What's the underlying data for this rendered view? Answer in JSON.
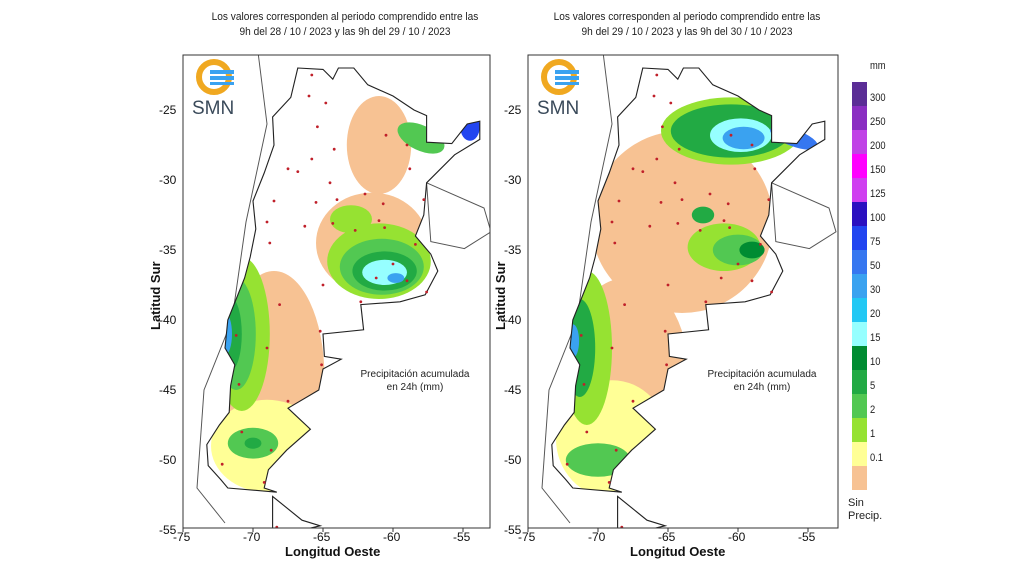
{
  "maps": [
    {
      "header_line1": "Los valores corresponden al periodo comprendido entre las",
      "header_line2": "9h del 28 / 10 / 2023  y las 9h del 29 / 10 / 2023",
      "annotation_line1": "Precipitación acumulada",
      "annotation_line2": "en 24h (mm)"
    },
    {
      "header_line1": "Los valores corresponden al periodo comprendido entre las",
      "header_line2": "9h del 29 / 10 / 2023  y las 9h del 30 / 10 / 2023",
      "annotation_line1": "Precipitación acumulada",
      "annotation_line2": "en 24h (mm)"
    }
  ],
  "logo_text": "SMN",
  "axes": {
    "xlabel": "Longitud Oeste",
    "ylabel": "Latitud Sur",
    "xticks": [
      "-75",
      "-70",
      "-65",
      "-60",
      "-55"
    ],
    "yticks": [
      "-25",
      "-30",
      "-35",
      "-40",
      "-45",
      "-50",
      "-55"
    ]
  },
  "legend": {
    "unit": "mm",
    "labels": [
      "300",
      "250",
      "200",
      "150",
      "125",
      "100",
      "75",
      "50",
      "30",
      "20",
      "15",
      "10",
      "5",
      "2",
      "1",
      "0.1"
    ],
    "colors": [
      "#5b2d96",
      "#8a2ec2",
      "#c043e6",
      "#ff00ff",
      "#cf3ff0",
      "#2b10c0",
      "#2245f0",
      "#3677f0",
      "#3aa2f0",
      "#22c8f4",
      "#96ffff",
      "#008c32",
      "#22aa44",
      "#52c852",
      "#96e232",
      "#ffff96",
      "#f7c293"
    ],
    "no_precip_line1": "Sin",
    "no_precip_line2": "Precip."
  }
}
